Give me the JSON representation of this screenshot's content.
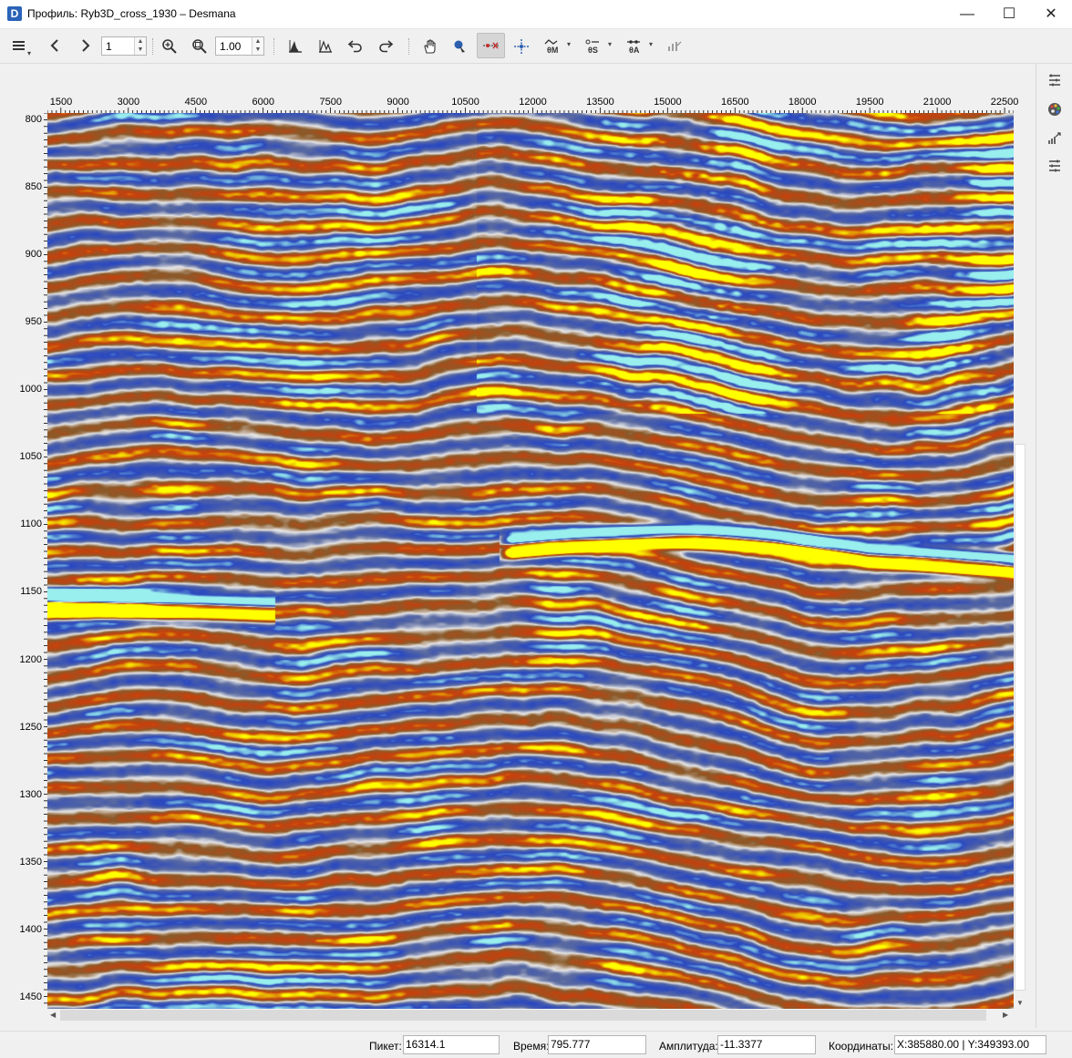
{
  "window": {
    "app_icon_letter": "D",
    "title": "Профиль: Ryb3D_cross_1930 – Desmana",
    "minimize_glyph": "—",
    "maximize_glyph": "☐",
    "close_glyph": "✕"
  },
  "toolbar": {
    "page_value": "1",
    "zoom_value": "1.00",
    "icons": [
      "menu-icon",
      "back-icon",
      "forward-icon",
      "zoom-in-icon",
      "zoom-fit-icon",
      "peak-icon",
      "trough-icon",
      "undo-icon",
      "redo-icon",
      "pan-hand-icon",
      "pick-icon",
      "horizon-track-icon",
      "crosshair-icon",
      "attribute-m-icon",
      "attribute-s-icon",
      "attribute-a-icon",
      "settings-small-icon"
    ]
  },
  "axes": {
    "x_ticks": [
      "1500",
      "3000",
      "4500",
      "6000",
      "7500",
      "9000",
      "10500",
      "12000",
      "13500",
      "15000",
      "16500",
      "18000",
      "19500",
      "21000",
      "22500"
    ],
    "y_ticks": [
      "800",
      "850",
      "900",
      "950",
      "1000",
      "1050",
      "1100",
      "1150",
      "1200",
      "1250",
      "1300",
      "1350",
      "1400",
      "1450"
    ]
  },
  "right_panel": {
    "icons": [
      "layers-list-icon",
      "palette-icon",
      "scale-icon",
      "properties-icon"
    ]
  },
  "status": {
    "picket_label": "Пикет:",
    "picket_value": "16314.1",
    "time_label": "Время:",
    "time_value": "795.777",
    "amplitude_label": "Амплитуда:",
    "amplitude_value": "-11.3377",
    "coords_label": "Координаты:",
    "coords_value": "X:385880.00 | Y:349393.00"
  },
  "colors": {
    "strong_positive": "#ffff00",
    "positive": "#c8400c",
    "weak_positive": "#8a5a2a",
    "neutral": "#e8e8e8",
    "weak_negative": "#5a6aa0",
    "negative": "#2a48c0",
    "strong_negative": "#99eeee"
  }
}
